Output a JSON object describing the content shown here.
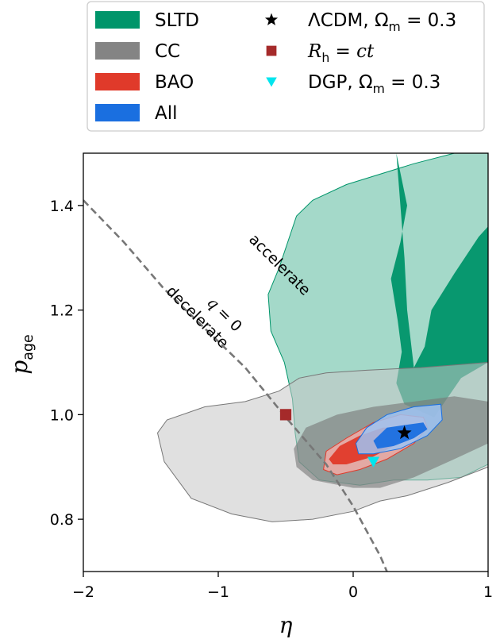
{
  "chart_data": {
    "type": "contour",
    "xlabel": "η",
    "ylabel_main": "p",
    "ylabel_sub": "age",
    "xlim": [
      -2,
      1
    ],
    "ylim": [
      0.7,
      1.5
    ],
    "xticks": [
      -2,
      -1,
      0,
      1
    ],
    "xtick_labels": [
      "−2",
      "−1",
      "0",
      "1"
    ],
    "yticks": [
      0.8,
      1.0,
      1.2,
      1.4
    ],
    "ytick_labels": [
      "0.8",
      "1.0",
      "1.2",
      "1.4"
    ],
    "grid": false,
    "legend_position": "top (above plot)",
    "regions": [
      {
        "name": "SLTD",
        "color": "#00956a",
        "contour_1sigma": [
          [
            0.32,
            1.5
          ],
          [
            0.4,
            1.4
          ],
          [
            0.35,
            1.33
          ],
          [
            0.28,
            1.26
          ],
          [
            0.33,
            1.18
          ],
          [
            0.36,
            1.12
          ],
          [
            0.32,
            1.06
          ],
          [
            0.38,
            1.02
          ],
          [
            0.6,
            0.995
          ],
          [
            0.8,
            1.07
          ],
          [
            1.0,
            1.1
          ],
          [
            1.0,
            1.36
          ],
          [
            0.93,
            1.34
          ],
          [
            0.75,
            1.27
          ],
          [
            0.58,
            1.2
          ],
          [
            0.53,
            1.13
          ],
          [
            0.45,
            1.09
          ],
          [
            0.4,
            1.2
          ],
          [
            0.38,
            1.3
          ],
          [
            0.35,
            1.4
          ]
        ],
        "contour_2sigma": [
          [
            -0.42,
            1.38
          ],
          [
            -0.55,
            1.28
          ],
          [
            -0.63,
            1.23
          ],
          [
            -0.61,
            1.16
          ],
          [
            -0.51,
            1.1
          ],
          [
            -0.45,
            1.03
          ],
          [
            -0.43,
            0.965
          ],
          [
            -0.4,
            0.91
          ],
          [
            -0.25,
            0.875
          ],
          [
            0.05,
            0.865
          ],
          [
            0.3,
            0.875
          ],
          [
            0.55,
            0.875
          ],
          [
            0.8,
            0.88
          ],
          [
            1.0,
            0.905
          ],
          [
            1.0,
            1.5
          ],
          [
            0.75,
            1.5
          ],
          [
            0.45,
            1.48
          ],
          [
            -0.05,
            1.44
          ],
          [
            -0.3,
            1.41
          ]
        ]
      },
      {
        "name": "CC",
        "color": "#777777",
        "contour_1sigma": [
          [
            -0.44,
            0.935
          ],
          [
            -0.35,
            0.975
          ],
          [
            -0.12,
            1.0
          ],
          [
            0.15,
            1.015
          ],
          [
            0.45,
            1.025
          ],
          [
            0.75,
            1.035
          ],
          [
            1.0,
            1.025
          ],
          [
            1.0,
            0.945
          ],
          [
            0.75,
            0.915
          ],
          [
            0.45,
            0.88
          ],
          [
            0.2,
            0.86
          ],
          [
            0.0,
            0.86
          ],
          [
            -0.3,
            0.875
          ],
          [
            -0.42,
            0.9
          ]
        ],
        "contour_2sigma": [
          [
            -1.45,
            0.965
          ],
          [
            -1.38,
            0.99
          ],
          [
            -1.1,
            1.015
          ],
          [
            -0.8,
            1.025
          ],
          [
            -0.55,
            1.045
          ],
          [
            -0.4,
            1.07
          ],
          [
            -0.2,
            1.08
          ],
          [
            0.1,
            1.085
          ],
          [
            0.5,
            1.09
          ],
          [
            1.0,
            1.1
          ],
          [
            1.0,
            0.9
          ],
          [
            0.7,
            0.87
          ],
          [
            0.4,
            0.845
          ],
          [
            0.2,
            0.835
          ],
          [
            0.0,
            0.815
          ],
          [
            -0.3,
            0.8
          ],
          [
            -0.6,
            0.795
          ],
          [
            -0.9,
            0.81
          ],
          [
            -1.2,
            0.84
          ],
          [
            -1.4,
            0.91
          ]
        ]
      },
      {
        "name": "BAO",
        "color": "#e03a2a",
        "contour_1sigma": [
          [
            -0.18,
            0.915
          ],
          [
            -0.1,
            0.94
          ],
          [
            0.05,
            0.96
          ],
          [
            0.22,
            0.975
          ],
          [
            0.34,
            0.975
          ],
          [
            0.4,
            0.965
          ],
          [
            0.3,
            0.94
          ],
          [
            0.15,
            0.92
          ],
          [
            -0.05,
            0.905
          ],
          [
            -0.15,
            0.905
          ]
        ],
        "contour_2sigma": [
          [
            -0.22,
            0.895
          ],
          [
            -0.2,
            0.93
          ],
          [
            -0.05,
            0.955
          ],
          [
            0.15,
            0.985
          ],
          [
            0.35,
            1.0
          ],
          [
            0.52,
            0.995
          ],
          [
            0.55,
            0.975
          ],
          [
            0.45,
            0.945
          ],
          [
            0.25,
            0.915
          ],
          [
            0.05,
            0.895
          ],
          [
            -0.12,
            0.885
          ]
        ]
      },
      {
        "name": "All",
        "color": "#1a6fe0",
        "contour_1sigma": [
          [
            0.15,
            0.95
          ],
          [
            0.25,
            0.975
          ],
          [
            0.38,
            0.98
          ],
          [
            0.52,
            0.985
          ],
          [
            0.55,
            0.972
          ],
          [
            0.45,
            0.955
          ],
          [
            0.3,
            0.94
          ],
          [
            0.18,
            0.935
          ]
        ],
        "contour_2sigma": [
          [
            0.02,
            0.945
          ],
          [
            0.1,
            0.975
          ],
          [
            0.25,
            1.0
          ],
          [
            0.45,
            1.015
          ],
          [
            0.65,
            1.02
          ],
          [
            0.66,
            0.99
          ],
          [
            0.55,
            0.96
          ],
          [
            0.35,
            0.935
          ],
          [
            0.15,
            0.925
          ],
          [
            0.04,
            0.925
          ]
        ]
      }
    ],
    "markers": [
      {
        "name": "ΛCDM, Ω_m = 0.3",
        "label_main": "ΛCDM, Ω",
        "label_sub": "m",
        "label_tail": " = 0.3",
        "symbol": "star",
        "color": "#000000",
        "x": 0.38,
        "y": 0.965
      },
      {
        "name": "R_h = ct",
        "label_main": "R",
        "label_sub": "h",
        "label_tail": " = ct",
        "symbol": "square",
        "color": "#a52a2a",
        "x": -0.5,
        "y": 1.0
      },
      {
        "name": "DGP, Ω_m = 0.3",
        "label_main": "DGP, Ω",
        "label_sub": "m",
        "label_tail": " = 0.3",
        "symbol": "triangle-down",
        "color": "#00e5ee",
        "x": 0.15,
        "y": 0.91
      }
    ],
    "q0_line": {
      "label_main": "q",
      "label_tail": " = 0",
      "color": "#777777",
      "style": "dashed",
      "points": [
        [
          -2.0,
          1.41
        ],
        [
          -1.7,
          1.33
        ],
        [
          -1.4,
          1.24
        ],
        [
          -1.1,
          1.165
        ],
        [
          -0.8,
          1.09
        ],
        [
          -0.5,
          0.995
        ],
        [
          -0.2,
          0.905
        ],
        [
          0.0,
          0.825
        ],
        [
          0.2,
          0.73
        ],
        [
          0.25,
          0.7
        ]
      ]
    },
    "annotations": [
      {
        "text": "accelerate",
        "x": -0.57,
        "y": 1.28,
        "angle": 45
      },
      {
        "text": "decelerate",
        "x": -1.18,
        "y": 1.18,
        "angle": 45
      }
    ],
    "legend_left": [
      "SLTD",
      "CC",
      "BAO",
      "All"
    ],
    "legend_right": [
      "ΛCDM, Ω_m = 0.3",
      "R_h = ct",
      "DGP, Ω_m = 0.3"
    ]
  }
}
